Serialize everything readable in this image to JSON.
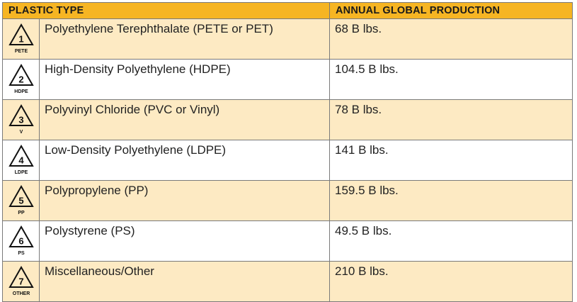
{
  "headers": {
    "type": "PLASTIC TYPE",
    "production": "ANNUAL GLOBAL PRODUCTION"
  },
  "rows": [
    {
      "code": "1",
      "abbr": "PETE",
      "name": "Polyethylene Terephthalate (PETE or PET)",
      "production": "68 B lbs."
    },
    {
      "code": "2",
      "abbr": "HDPE",
      "name": "High-Density Polyethylene (HDPE)",
      "production": "104.5 B lbs."
    },
    {
      "code": "3",
      "abbr": "V",
      "name": "Polyvinyl Chloride (PVC or Vinyl)",
      "production": "78 B lbs."
    },
    {
      "code": "4",
      "abbr": "LDPE",
      "name": "Low-Density Polyethylene (LDPE)",
      "production": "141 B lbs."
    },
    {
      "code": "5",
      "abbr": "PP",
      "name": "Polypropylene (PP)",
      "production": "159.5 B lbs."
    },
    {
      "code": "6",
      "abbr": "PS",
      "name": "Polystyrene (PS)",
      "production": "49.5 B lbs."
    },
    {
      "code": "7",
      "abbr": "OTHER",
      "name": "Miscellaneous/Other",
      "production": "210 B lbs."
    }
  ],
  "colors": {
    "header": "#f6b523",
    "row_alt": "#fdeac3",
    "border": "#7a7a7a"
  }
}
